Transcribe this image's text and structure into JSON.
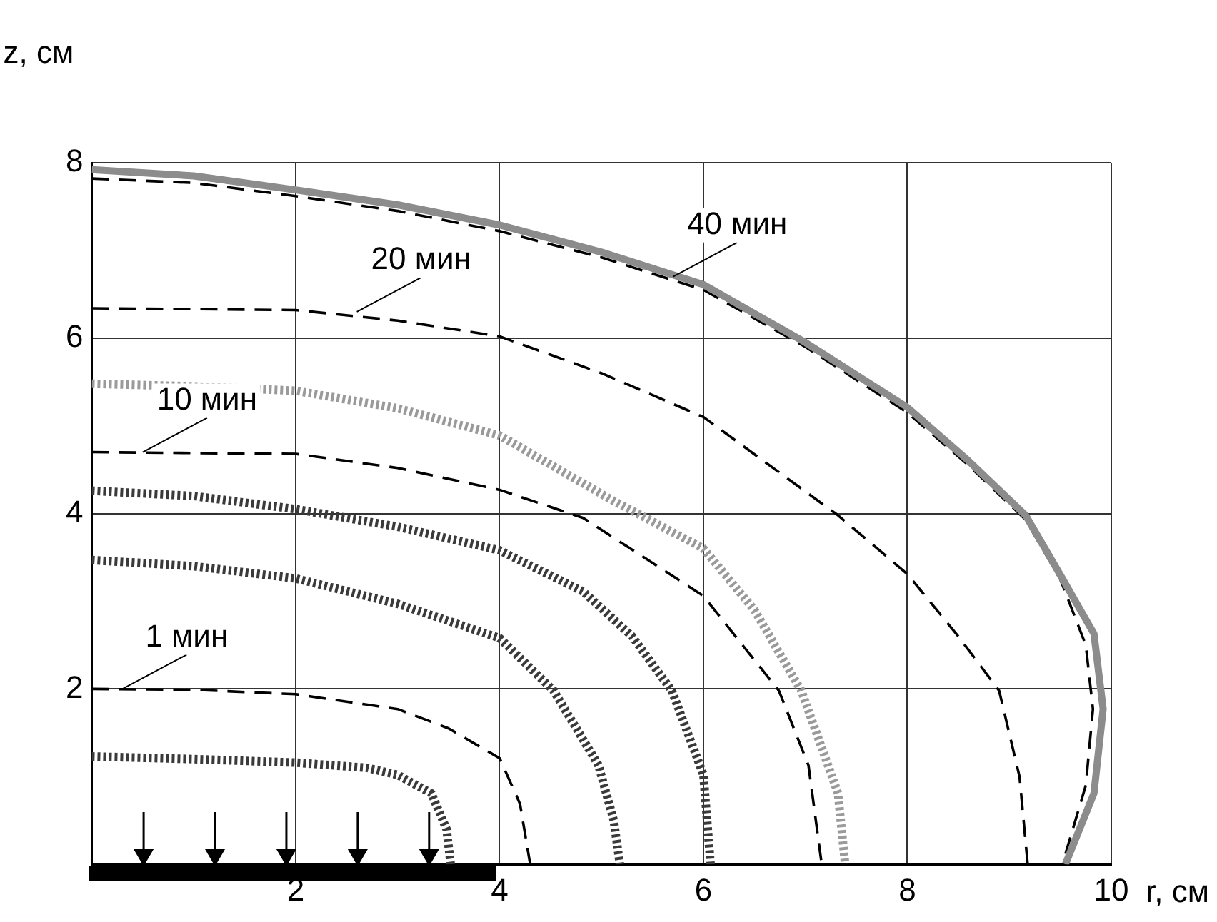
{
  "chart_data": {
    "type": "line",
    "xlabel": "r, см",
    "ylabel": "z, см",
    "xlim": [
      0,
      10
    ],
    "ylim": [
      0,
      8
    ],
    "xticks": [
      2,
      4,
      6,
      8,
      10
    ],
    "yticks": [
      2,
      4,
      6,
      8
    ],
    "grid": true,
    "legend": false,
    "marker": "none",
    "series": [
      {
        "color": "#8c8c8c",
        "line_style": "solid",
        "x": [
          0,
          1,
          2,
          3,
          4,
          5,
          6,
          7,
          8,
          8.6,
          9.16,
          9.5,
          9.83,
          9.92,
          9.83,
          9.55
        ],
        "values": [
          7.92,
          7.85,
          7.69,
          7.52,
          7.29,
          6.98,
          6.61,
          5.95,
          5.21,
          4.6,
          3.98,
          3.3,
          2.63,
          1.77,
          0.81,
          0
        ]
      },
      {
        "color": "#000000",
        "line_style": "dashed",
        "x": [
          0,
          1,
          2,
          3,
          4,
          5,
          6,
          7,
          8,
          8.6,
          9.16,
          9.5,
          9.75,
          9.82,
          9.75,
          9.52
        ],
        "values": [
          7.82,
          7.77,
          7.62,
          7.45,
          7.22,
          6.92,
          6.55,
          5.9,
          5.15,
          4.55,
          3.93,
          3.25,
          2.5,
          1.77,
          0.9,
          0
        ]
      },
      {
        "color": "#000000",
        "line_style": "dashed",
        "x": [
          0,
          2,
          3,
          4,
          5,
          6,
          7.32,
          8,
          8.5,
          8.9,
          9.1,
          9.18
        ],
        "values": [
          6.34,
          6.32,
          6.2,
          6.02,
          5.6,
          5.1,
          3.98,
          3.31,
          2.6,
          1.98,
          1.0,
          0
        ]
      },
      {
        "color": "#000000",
        "line_style": "dashed",
        "x": [
          0,
          2,
          3,
          4,
          4.82,
          6,
          6.74,
          7.03,
          7.16
        ],
        "values": [
          4.7,
          4.68,
          4.52,
          4.27,
          3.95,
          3.06,
          1.98,
          1.13,
          0
        ]
      },
      {
        "color": "#000000",
        "line_style": "dashed",
        "x": [
          0,
          1,
          2,
          3,
          3.5,
          4,
          4.2,
          4.3
        ],
        "values": [
          2.0,
          1.99,
          1.94,
          1.77,
          1.55,
          1.21,
          0.69,
          0
        ]
      },
      {
        "color": "#9a9a9a",
        "line_style": "dotted",
        "x": [
          0,
          1,
          2,
          3,
          4,
          5.11,
          6,
          6.5,
          6.96,
          7.32,
          7.39
        ],
        "values": [
          5.48,
          5.45,
          5.4,
          5.2,
          4.89,
          4.15,
          3.6,
          2.9,
          1.98,
          0.81,
          0
        ]
      },
      {
        "color": "#3a3a3a",
        "line_style": "dotted",
        "x": [
          0,
          1,
          2,
          3,
          4,
          4.82,
          5.3,
          5.69,
          6.0,
          6.07
        ],
        "values": [
          4.26,
          4.2,
          4.05,
          3.85,
          3.58,
          3.11,
          2.6,
          1.98,
          1.02,
          0
        ]
      },
      {
        "color": "#3a3a3a",
        "line_style": "dotted",
        "x": [
          0,
          1,
          2,
          3,
          4,
          4.53,
          4.97,
          5.12,
          5.18
        ],
        "values": [
          3.47,
          3.4,
          3.26,
          2.97,
          2.58,
          1.98,
          1.13,
          0.5,
          0
        ]
      },
      {
        "color": "#3a3a3a",
        "line_style": "dotted",
        "x": [
          0,
          1,
          2,
          2.7,
          3,
          3.33,
          3.48,
          3.52
        ],
        "values": [
          1.23,
          1.2,
          1.16,
          1.1,
          1.02,
          0.81,
          0.4,
          0
        ]
      }
    ],
    "annotations": [
      {
        "text": "1 мин",
        "x": 0.3,
        "y": 2.0
      },
      {
        "text": "10 мин",
        "x": 0.5,
        "y": 4.7
      },
      {
        "text": "20 мин",
        "x": 2.6,
        "y": 6.3
      },
      {
        "text": "40 мин",
        "x": 5.7,
        "y": 6.7
      }
    ]
  }
}
